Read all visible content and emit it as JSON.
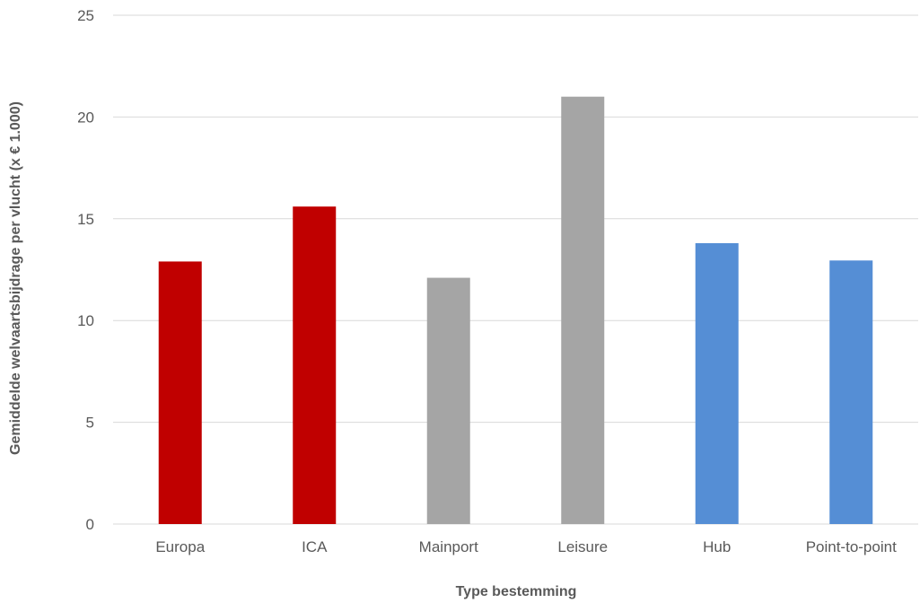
{
  "chart_data": {
    "type": "bar",
    "title": "",
    "xlabel": "Type bestemming",
    "ylabel": "Gemiddelde welvaartsbijdrage per vlucht (x  € 1.000)",
    "categories": [
      "Europa",
      "ICA",
      "Mainport",
      "Leisure",
      "Hub",
      "Point-to-point"
    ],
    "values": [
      12.9,
      15.6,
      12.1,
      21.0,
      13.8,
      12.95
    ],
    "colors": [
      "#c00000",
      "#c00000",
      "#a5a5a5",
      "#a5a5a5",
      "#558ed5",
      "#558ed5"
    ],
    "ylim": [
      0,
      25
    ],
    "yticks": [
      0,
      5,
      10,
      15,
      20,
      25
    ],
    "grid": true,
    "legend": "none"
  }
}
